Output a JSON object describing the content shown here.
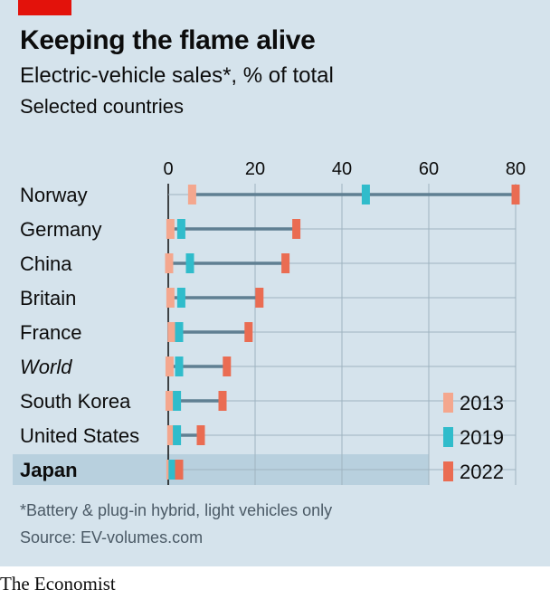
{
  "header": {
    "title": "Keeping the flame alive",
    "subtitle": "Electric-vehicle sales*, % of total",
    "subtitle2": "Selected countries"
  },
  "footer": {
    "footnote": "*Battery & plug-in hybrid, light vehicles only",
    "source": "Source: EV-volumes.com",
    "brand": "The Economist"
  },
  "colors": {
    "background": "#d5e3ec",
    "brand_red": "#e3120b",
    "c2013": "#f4a78e",
    "c2019": "#30bccb",
    "c2022": "#ea6c52",
    "connector": "#5f7f92",
    "grid": "#9fb3c0",
    "highlight": "#b8d0de"
  },
  "chart_data": {
    "type": "dot-range",
    "title": "Keeping the flame alive",
    "subtitle": "Electric-vehicle sales*, % of total",
    "xlim": [
      0,
      80
    ],
    "xticks": [
      0,
      20,
      40,
      60,
      80
    ],
    "grid": true,
    "legend_position": "bottom-right",
    "series_names": [
      "2013",
      "2019",
      "2022"
    ],
    "rows": [
      {
        "label": "Norway",
        "v2013": 5.5,
        "v2019": 45.5,
        "v2022": 80,
        "italic": false,
        "highlight": false
      },
      {
        "label": "Germany",
        "v2013": 0.5,
        "v2019": 3,
        "v2022": 29.5,
        "italic": false,
        "highlight": false
      },
      {
        "label": "China",
        "v2013": 0.2,
        "v2019": 5,
        "v2022": 27,
        "italic": false,
        "highlight": false
      },
      {
        "label": "Britain",
        "v2013": 0.5,
        "v2019": 3,
        "v2022": 21,
        "italic": false,
        "highlight": false
      },
      {
        "label": "France",
        "v2013": 0.8,
        "v2019": 2.5,
        "v2022": 18.5,
        "italic": false,
        "highlight": false
      },
      {
        "label": "World",
        "v2013": 0.3,
        "v2019": 2.5,
        "v2022": 13.5,
        "italic": true,
        "highlight": false
      },
      {
        "label": "South Korea",
        "v2013": 0.3,
        "v2019": 2,
        "v2022": 12.5,
        "italic": false,
        "highlight": false
      },
      {
        "label": "United States",
        "v2013": 0.7,
        "v2019": 2,
        "v2022": 7.5,
        "italic": false,
        "highlight": false
      },
      {
        "label": "Japan",
        "v2013": 0.5,
        "v2019": 1,
        "v2022": 2.5,
        "italic": false,
        "highlight": true
      }
    ]
  }
}
